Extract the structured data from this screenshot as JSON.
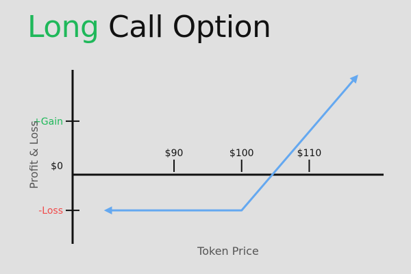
{
  "title": {
    "accent": "Long",
    "rest": "Call Option"
  },
  "colors": {
    "accent": "#1fb85a",
    "gain": "#1fb85a",
    "loss": "#f04b4b",
    "payoff": "#64a8f0",
    "axis": "#111111",
    "background": "#e0e0e0"
  },
  "chart_data": {
    "type": "line",
    "title": "Long Call Option",
    "xlabel": "Token Price",
    "ylabel": "Profit & Loss",
    "x_ticks": [
      {
        "value": 90,
        "label": "$90"
      },
      {
        "value": 100,
        "label": "$100"
      },
      {
        "value": 110,
        "label": "$110"
      }
    ],
    "y_ticks": [
      {
        "value": 1,
        "label": "+Gain",
        "color_key": "gain"
      },
      {
        "value": 0,
        "label": "$0",
        "color_key": "axis"
      },
      {
        "value": -1,
        "label": "-Loss",
        "color_key": "loss"
      }
    ],
    "xlim": [
      75,
      121
    ],
    "ylim": [
      -1.75,
      2.15
    ],
    "series": [
      {
        "name": "payoff",
        "points": [
          {
            "x": 80,
            "y": -1
          },
          {
            "x": 100,
            "y": -1
          },
          {
            "x": 117,
            "y": 2
          }
        ],
        "arrow_left": true,
        "arrow_right": true
      }
    ]
  }
}
